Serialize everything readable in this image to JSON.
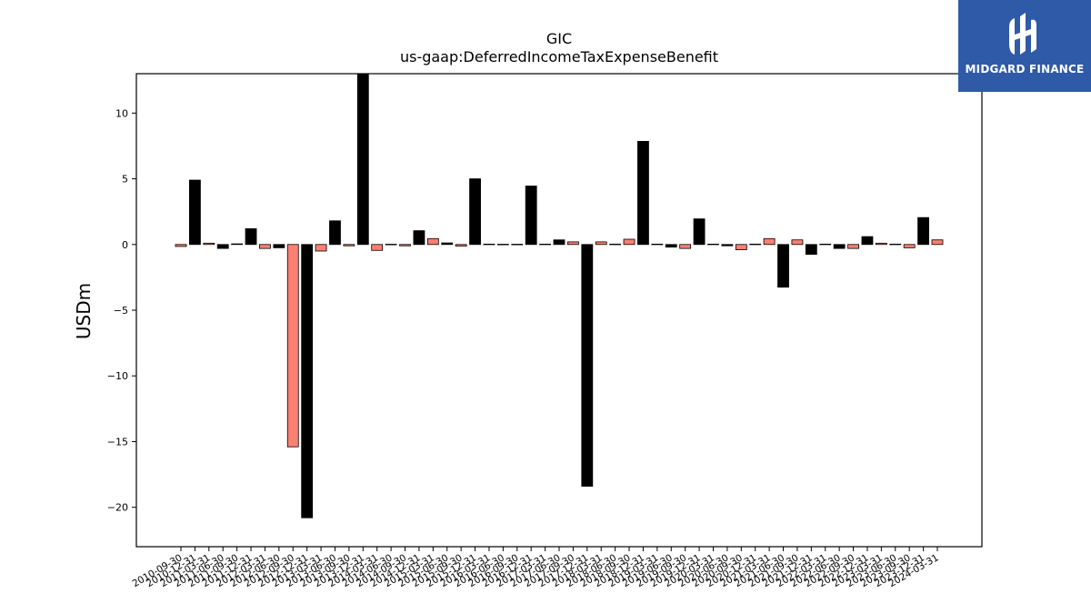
{
  "brand": {
    "name": "MIDGARD FINANCE",
    "bg_color": "#2f5aa8"
  },
  "chart_data": {
    "type": "bar",
    "title": "GIC",
    "subtitle": "us-gaap:DeferredIncomeTaxExpenseBenefit",
    "ylabel": "USDm",
    "ylim": [
      -23,
      13
    ],
    "yticks": [
      10,
      5,
      0,
      -5,
      -10,
      -15,
      -20
    ],
    "negative_tick_prefix": "−",
    "colors": {
      "odd": "#fa8072",
      "even": "#000000",
      "edge": "#000000"
    },
    "categories": [
      "2010-09-30",
      "2010-12-31",
      "2011-03-31",
      "2011-06-30",
      "2011-09-30",
      "2011-12-31",
      "2012-03-31",
      "2012-06-30",
      "2012-09-30",
      "2012-12-31",
      "2013-03-31",
      "2013-06-30",
      "2013-09-30",
      "2013-12-31",
      "2014-03-31",
      "2014-06-30",
      "2014-09-30",
      "2014-12-31",
      "2015-03-31",
      "2015-06-30",
      "2015-09-30",
      "2015-12-31",
      "2016-03-31",
      "2016-06-30",
      "2016-09-30",
      "2016-12-31",
      "2017-03-31",
      "2017-06-30",
      "2017-09-30",
      "2017-12-31",
      "2018-03-31",
      "2018-06-30",
      "2018-09-30",
      "2018-12-31",
      "2019-03-31",
      "2019-06-30",
      "2019-09-30",
      "2019-12-31",
      "2020-03-31",
      "2020-06-30",
      "2020-09-30",
      "2020-12-31",
      "2021-03-31",
      "2021-06-30",
      "2021-09-30",
      "2021-12-31",
      "2022-03-31",
      "2022-06-30",
      "2022-09-30",
      "2022-12-31",
      "2023-03-31",
      "2023-06-30",
      "2023-09-30",
      "2023-12-31",
      "2024-03-31"
    ],
    "values": [
      -0.15,
      4.9,
      0.1,
      -0.3,
      0.05,
      1.2,
      -0.3,
      -0.25,
      -15.4,
      -20.8,
      -0.5,
      1.8,
      -0.1,
      13.0,
      -0.45,
      0.02,
      -0.1,
      1.05,
      0.45,
      0.12,
      -0.12,
      5.0,
      0.03,
      0.02,
      0.02,
      4.45,
      0.03,
      0.35,
      0.2,
      -18.4,
      0.2,
      0.03,
      0.4,
      7.85,
      0.03,
      -0.2,
      -0.3,
      1.95,
      0.03,
      -0.1,
      -0.4,
      0.03,
      0.45,
      -3.25,
      0.35,
      -0.75,
      0.03,
      -0.3,
      -0.3,
      0.6,
      0.1,
      0.03,
      -0.25,
      2.05,
      0.35
    ]
  }
}
